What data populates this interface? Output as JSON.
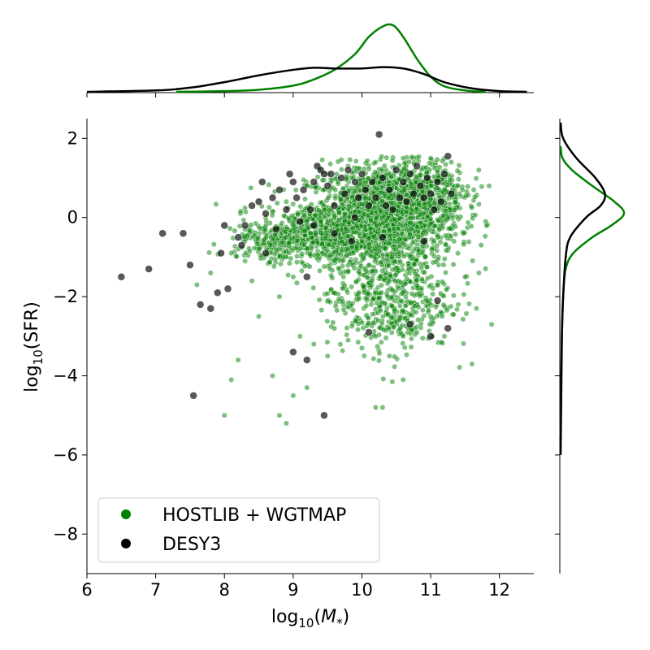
{
  "chart_data": {
    "type": "scatter",
    "xlabel_base": "log",
    "xlabel_sub": "10",
    "xlabel_var": "M",
    "xlabel_varsub": "*",
    "ylabel_base": "log",
    "ylabel_sub": "10",
    "ylabel_arg": "(SFR)",
    "xlim": [
      6,
      12.5
    ],
    "ylim": [
      -9,
      2.5
    ],
    "xticks": [
      6,
      7,
      8,
      9,
      10,
      11,
      12
    ],
    "yticks": [
      2,
      0,
      -2,
      -4,
      -6,
      -8
    ],
    "ytick_labels": [
      "2",
      "0",
      "−2",
      "−4",
      "−6",
      "−8"
    ],
    "grid": false,
    "legend_placement": "lower-left",
    "series": [
      {
        "name": "HOSTLIB + WGTMAP",
        "color": "#008000",
        "marginal_x_kde": [
          [
            7.3,
            0.0
          ],
          [
            8.0,
            0.01
          ],
          [
            8.5,
            0.03
          ],
          [
            9.0,
            0.09
          ],
          [
            9.3,
            0.18
          ],
          [
            9.6,
            0.32
          ],
          [
            9.9,
            0.55
          ],
          [
            10.1,
            0.8
          ],
          [
            10.3,
            0.95
          ],
          [
            10.45,
            0.97
          ],
          [
            10.6,
            0.8
          ],
          [
            10.8,
            0.48
          ],
          [
            11.0,
            0.22
          ],
          [
            11.2,
            0.08
          ],
          [
            11.5,
            0.02
          ],
          [
            11.8,
            0.0
          ]
        ],
        "marginal_y_kde": [
          [
            1.8,
            0.0
          ],
          [
            1.5,
            0.03
          ],
          [
            1.2,
            0.18
          ],
          [
            0.8,
            0.5
          ],
          [
            0.4,
            0.85
          ],
          [
            0.1,
            1.0
          ],
          [
            -0.2,
            0.8
          ],
          [
            -0.5,
            0.5
          ],
          [
            -0.9,
            0.2
          ],
          [
            -1.3,
            0.08
          ],
          [
            -2.0,
            0.04
          ],
          [
            -3.0,
            0.02
          ],
          [
            -4.0,
            0.01
          ],
          [
            -5.5,
            0.0
          ]
        ],
        "points": [
          [
            8.1,
            -4.1
          ],
          [
            8.0,
            -5.0
          ],
          [
            8.2,
            -3.6
          ],
          [
            8.7,
            -4.0
          ],
          [
            8.8,
            -5.0
          ],
          [
            8.9,
            -5.2
          ],
          [
            9.0,
            -4.5
          ],
          [
            9.2,
            -4.3
          ],
          [
            10.2,
            -4.8
          ],
          [
            10.3,
            -4.8
          ],
          [
            10.6,
            -4.1
          ],
          [
            11.6,
            -3.7
          ],
          [
            7.6,
            -1.7
          ],
          [
            7.8,
            -1.4
          ],
          [
            8.1,
            -0.9
          ],
          [
            8.3,
            -1.1
          ],
          [
            8.4,
            -1.6
          ],
          [
            8.5,
            -2.5
          ],
          [
            8.8,
            -2.0
          ],
          [
            9.0,
            -1.5
          ],
          [
            9.1,
            -3.0
          ],
          [
            9.3,
            -3.2
          ],
          [
            9.5,
            -3.5
          ],
          [
            9.6,
            -2.8
          ],
          [
            9.8,
            -3.1
          ],
          [
            10.0,
            -3.3
          ],
          [
            10.2,
            -3.0
          ],
          [
            10.4,
            -3.5
          ],
          [
            10.6,
            -3.0
          ],
          [
            10.8,
            -2.9
          ],
          [
            11.0,
            -2.5
          ],
          [
            11.2,
            -3.0
          ],
          [
            11.4,
            -2.2
          ],
          [
            11.5,
            -1.5
          ],
          [
            11.7,
            -1.4
          ],
          [
            11.8,
            -0.1
          ],
          [
            11.85,
            0.8
          ],
          [
            11.7,
            1.2
          ],
          [
            11.3,
            1.4
          ],
          [
            11.0,
            1.5
          ],
          [
            10.6,
            1.5
          ],
          [
            10.2,
            1.4
          ],
          [
            9.8,
            1.3
          ],
          [
            9.5,
            1.1
          ],
          [
            9.2,
            0.8
          ],
          [
            8.9,
            0.4
          ],
          [
            8.6,
            0.0
          ],
          [
            8.3,
            -0.3
          ]
        ],
        "cloud_density": [
          {
            "center": [
              10.3,
              0.0
            ],
            "spread": [
              0.55,
              0.65
            ],
            "count": 1500
          },
          {
            "center": [
              9.4,
              -0.4
            ],
            "spread": [
              0.45,
              0.35
            ],
            "count": 500
          },
          {
            "center": [
              10.4,
              -2.0
            ],
            "spread": [
              0.45,
              0.7
            ],
            "count": 500
          },
          {
            "center": [
              10.8,
              0.6
            ],
            "spread": [
              0.35,
              0.45
            ],
            "count": 400
          },
          {
            "center": [
              8.6,
              -0.6
            ],
            "spread": [
              0.3,
              0.25
            ],
            "count": 120
          }
        ]
      },
      {
        "name": "DESY3",
        "color": "#000000",
        "marginal_x_kde": [
          [
            6.0,
            0.0
          ],
          [
            7.0,
            0.02
          ],
          [
            7.5,
            0.06
          ],
          [
            8.0,
            0.14
          ],
          [
            8.5,
            0.24
          ],
          [
            9.0,
            0.32
          ],
          [
            9.3,
            0.35
          ],
          [
            9.6,
            0.34
          ],
          [
            10.0,
            0.34
          ],
          [
            10.3,
            0.36
          ],
          [
            10.6,
            0.34
          ],
          [
            10.9,
            0.26
          ],
          [
            11.2,
            0.14
          ],
          [
            11.6,
            0.05
          ],
          [
            12.0,
            0.01
          ],
          [
            12.4,
            0.0
          ]
        ],
        "marginal_y_kde": [
          [
            2.4,
            0.0
          ],
          [
            2.0,
            0.04
          ],
          [
            1.5,
            0.25
          ],
          [
            1.0,
            0.55
          ],
          [
            0.6,
            0.7
          ],
          [
            0.3,
            0.63
          ],
          [
            0.0,
            0.4
          ],
          [
            -0.5,
            0.15
          ],
          [
            -1.0,
            0.08
          ],
          [
            -2.0,
            0.04
          ],
          [
            -3.0,
            0.02
          ],
          [
            -4.5,
            0.01
          ],
          [
            -6.0,
            0.0
          ]
        ],
        "points": [
          [
            6.5,
            -1.5
          ],
          [
            6.9,
            -1.3
          ],
          [
            7.1,
            -0.4
          ],
          [
            7.4,
            -0.4
          ],
          [
            7.5,
            -1.2
          ],
          [
            7.65,
            -2.2
          ],
          [
            7.8,
            -2.3
          ],
          [
            7.9,
            -1.9
          ],
          [
            7.95,
            -0.9
          ],
          [
            8.0,
            -0.2
          ],
          [
            8.05,
            -1.8
          ],
          [
            8.2,
            -0.5
          ],
          [
            8.25,
            -0.7
          ],
          [
            8.3,
            -0.2
          ],
          [
            8.4,
            0.3
          ],
          [
            8.5,
            0.4
          ],
          [
            8.55,
            0.9
          ],
          [
            8.6,
            0.1
          ],
          [
            8.7,
            0.5
          ],
          [
            8.75,
            -0.3
          ],
          [
            8.8,
            0.7
          ],
          [
            8.9,
            0.2
          ],
          [
            8.95,
            1.1
          ],
          [
            9.0,
            0.9
          ],
          [
            9.05,
            0.5
          ],
          [
            9.1,
            -0.1
          ],
          [
            9.15,
            0.7
          ],
          [
            9.2,
            -1.5
          ],
          [
            9.25,
            0.2
          ],
          [
            9.3,
            0.9
          ],
          [
            9.35,
            1.3
          ],
          [
            9.4,
            1.2
          ],
          [
            9.45,
            1.1
          ],
          [
            9.5,
            0.8
          ],
          [
            9.55,
            1.1
          ],
          [
            9.6,
            0.3
          ],
          [
            9.7,
            1.0
          ],
          [
            9.75,
            0.6
          ],
          [
            9.8,
            1.2
          ],
          [
            9.85,
            -0.6
          ],
          [
            9.9,
            0.9
          ],
          [
            9.95,
            0.5
          ],
          [
            10.0,
            1.1
          ],
          [
            10.05,
            0.7
          ],
          [
            10.1,
            0.3
          ],
          [
            10.15,
            0.9
          ],
          [
            10.2,
            0.5
          ],
          [
            10.25,
            2.1
          ],
          [
            10.3,
            1.0
          ],
          [
            10.35,
            0.3
          ],
          [
            10.4,
            0.7
          ],
          [
            10.45,
            0.2
          ],
          [
            10.5,
            1.2
          ],
          [
            10.55,
            0.5
          ],
          [
            10.6,
            0.9
          ],
          [
            10.65,
            0.4
          ],
          [
            10.7,
            1.1
          ],
          [
            10.75,
            0.6
          ],
          [
            10.8,
            1.3
          ],
          [
            10.85,
            0.8
          ],
          [
            10.9,
            0.5
          ],
          [
            10.95,
            1.0
          ],
          [
            11.0,
            0.6
          ],
          [
            11.05,
            0.2
          ],
          [
            11.1,
            0.9
          ],
          [
            11.15,
            0.4
          ],
          [
            11.2,
            1.1
          ],
          [
            11.25,
            1.55
          ],
          [
            11.3,
            0.6
          ],
          [
            11.25,
            -2.8
          ],
          [
            11.0,
            -3.0
          ],
          [
            11.1,
            -2.1
          ],
          [
            9.0,
            -3.4
          ],
          [
            9.2,
            -3.6
          ],
          [
            9.45,
            -5.0
          ],
          [
            7.55,
            -4.5
          ],
          [
            10.1,
            -2.9
          ],
          [
            10.7,
            -2.7
          ],
          [
            10.9,
            -0.6
          ],
          [
            9.6,
            -0.4
          ],
          [
            10.3,
            -0.5
          ],
          [
            9.3,
            -0.2
          ],
          [
            8.6,
            -0.9
          ],
          [
            9.9,
            0.0
          ]
        ]
      }
    ]
  }
}
